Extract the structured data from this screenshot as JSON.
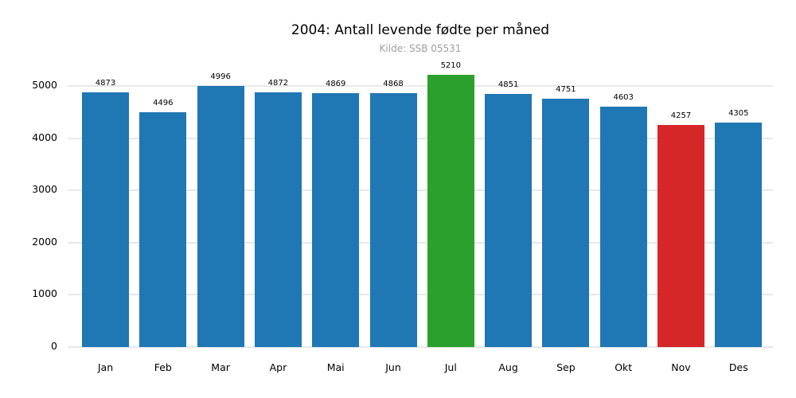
{
  "chart_data": {
    "type": "bar",
    "title": "2004: Antall levende fødte per måned",
    "subtitle": "Kilde: SSB 05531",
    "categories": [
      "Jan",
      "Feb",
      "Mar",
      "Apr",
      "Mai",
      "Jun",
      "Jul",
      "Aug",
      "Sep",
      "Okt",
      "Nov",
      "Des"
    ],
    "values": [
      4873,
      4496,
      4996,
      4872,
      4869,
      4868,
      5210,
      4851,
      4751,
      4603,
      4257,
      4305
    ],
    "bar_colors": [
      "#1f77b4",
      "#1f77b4",
      "#1f77b4",
      "#1f77b4",
      "#1f77b4",
      "#1f77b4",
      "#2ca02c",
      "#1f77b4",
      "#1f77b4",
      "#1f77b4",
      "#d62728",
      "#1f77b4"
    ],
    "yticks": [
      0,
      1000,
      2000,
      3000,
      4000,
      5000
    ],
    "ylim": [
      0,
      5500
    ],
    "xlabel": "",
    "ylabel": "",
    "grid": true,
    "legend": "none",
    "colors": {
      "default_bar": "#1f77b4",
      "max_bar": "#2ca02c",
      "min_bar": "#d62728",
      "gridline": "#e8e8e8",
      "subtitle_text": "#9e9e9e",
      "text": "#000000",
      "background": "#ffffff"
    }
  }
}
